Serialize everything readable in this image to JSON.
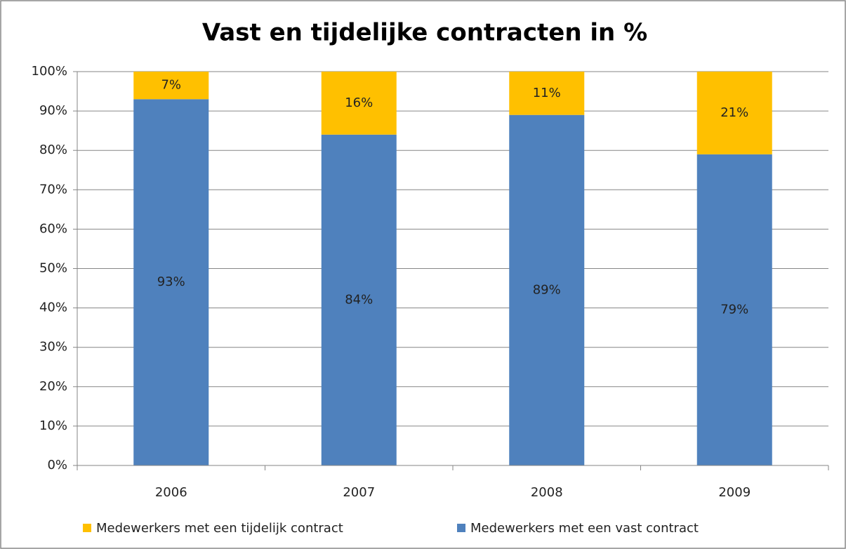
{
  "chart_data": {
    "type": "stacked_bar",
    "title": "Vast en tijdelijke contracten in %",
    "categories": [
      "2006",
      "2007",
      "2008",
      "2009"
    ],
    "series": [
      {
        "name": "Medewerkers met een vast contract",
        "color": "#4f81bd",
        "values": [
          93,
          84,
          89,
          79
        ],
        "value_labels": [
          "93%",
          "84%",
          "89%",
          "79%"
        ]
      },
      {
        "name": "Medewerkers met een tijdelijk contract",
        "color": "#ffc000",
        "values": [
          7,
          16,
          11,
          21
        ],
        "value_labels": [
          "7%",
          "16%",
          "11%",
          "21%"
        ]
      }
    ],
    "ylim": [
      0,
      100
    ],
    "yticks": [
      {
        "value": 0,
        "label": "0%"
      },
      {
        "value": 10,
        "label": "10%"
      },
      {
        "value": 20,
        "label": "20%"
      },
      {
        "value": 30,
        "label": "30%"
      },
      {
        "value": 40,
        "label": "40%"
      },
      {
        "value": 50,
        "label": "50%"
      },
      {
        "value": 60,
        "label": "60%"
      },
      {
        "value": 70,
        "label": "70%"
      },
      {
        "value": 80,
        "label": "80%"
      },
      {
        "value": 90,
        "label": "90%"
      },
      {
        "value": 100,
        "label": "100%"
      }
    ],
    "grid": true,
    "legend": "bottom"
  }
}
